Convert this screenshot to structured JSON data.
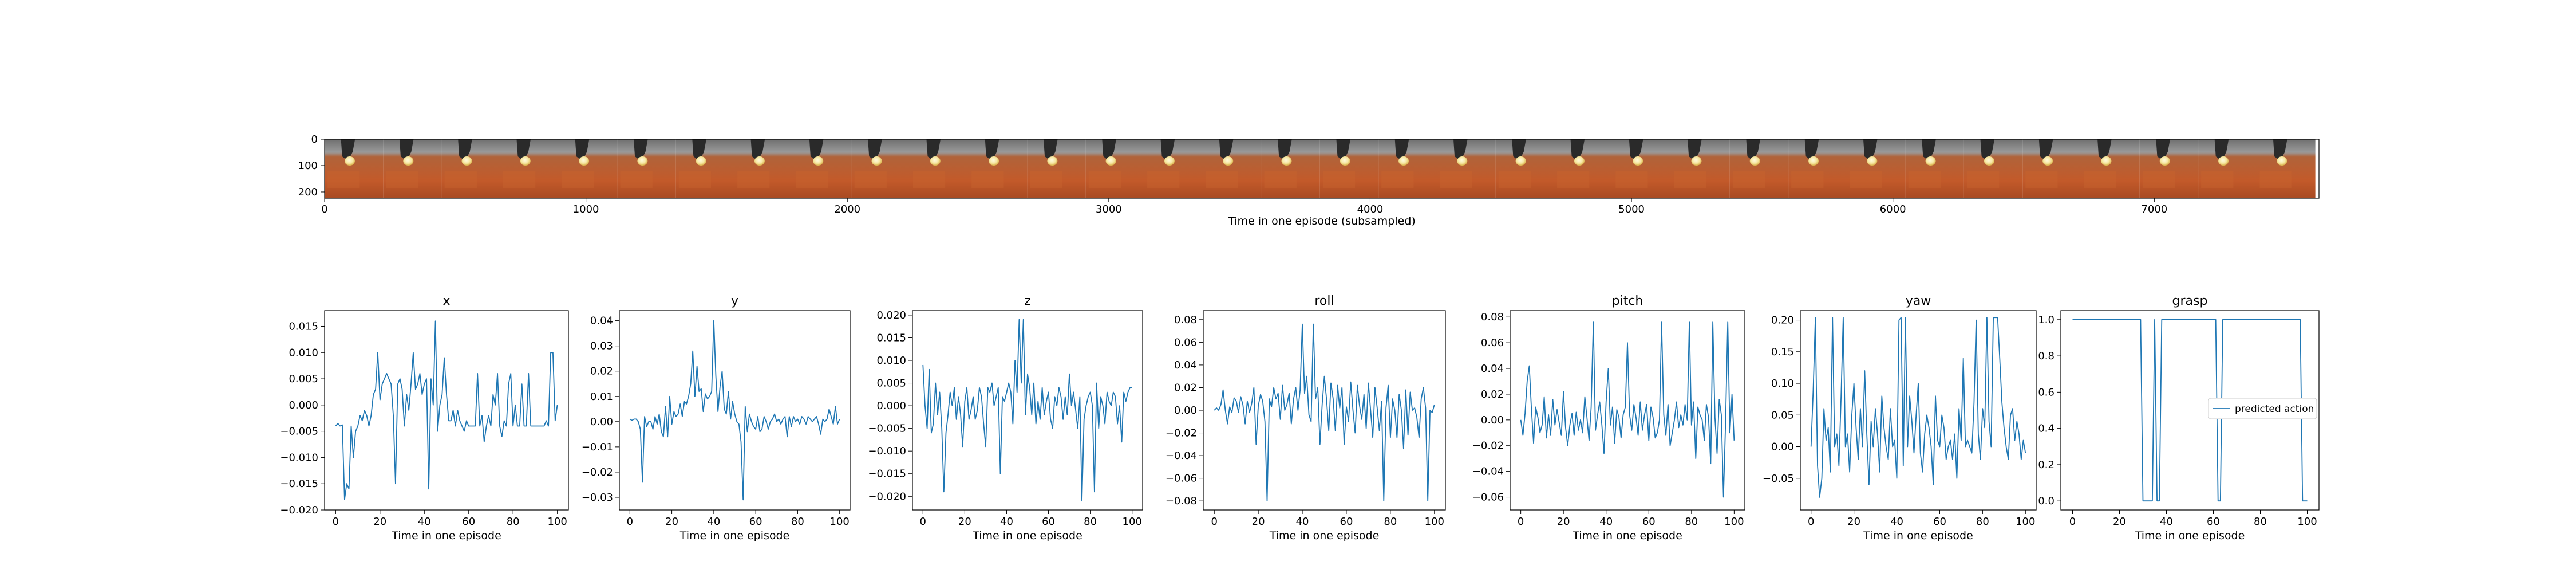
{
  "colors": {
    "series": "#1f77b4",
    "frame": "#000000",
    "legend_edge": "#cccccc"
  },
  "filmstrip": {
    "xlabel": "Time in one episode (subsampled)",
    "xticks": [
      0,
      1000,
      2000,
      3000,
      4000,
      5000,
      6000,
      7000
    ],
    "yticks": [
      0,
      100,
      200
    ],
    "xlim": [
      0,
      7630
    ],
    "ylim": [
      0,
      224
    ],
    "frame_count": 34,
    "frame_width_units": 224,
    "frame_ball_visible": [
      true,
      true,
      true,
      true,
      true,
      true,
      true,
      true,
      true,
      true,
      true,
      true,
      true,
      true,
      true,
      true,
      true,
      true,
      true,
      true,
      true,
      true,
      true,
      true,
      true,
      true,
      true,
      true,
      true,
      true,
      true,
      true,
      true,
      true
    ]
  },
  "chart_data": [
    {
      "type": "line",
      "title": "x",
      "xlabel": "Time in one episode",
      "ylabel": "",
      "xlim": [
        -5,
        105
      ],
      "ylim": [
        -0.02,
        0.018
      ],
      "xticks": [
        0,
        20,
        40,
        60,
        80,
        100
      ],
      "yticks": [
        -0.02,
        -0.015,
        -0.01,
        -0.005,
        0.0,
        0.005,
        0.01,
        0.015
      ],
      "ytick_labels": [
        "−0.020",
        "−0.015",
        "−0.010",
        "−0.005",
        "0.000",
        "0.005",
        "0.010",
        "0.015"
      ],
      "series": [
        {
          "values": [
            -0.004,
            -0.0035,
            -0.004,
            -0.0038,
            -0.018,
            -0.015,
            -0.016,
            -0.004,
            -0.01,
            -0.005,
            -0.004,
            -0.002,
            -0.003,
            -0.001,
            -0.002,
            -0.004,
            -0.002,
            0.002,
            0.003,
            0.01,
            0.001,
            0.004,
            0.005,
            0.006,
            0.005,
            0.004,
            -0.002,
            -0.015,
            0.004,
            0.005,
            0.003,
            -0.004,
            0.002,
            -0.001,
            0.004,
            0.01,
            0.003,
            0.004,
            0.006,
            0.002,
            0.004,
            0.005,
            -0.016,
            0.005,
            0.0,
            0.016,
            -0.005,
            0.0,
            0.002,
            0.009,
            0.002,
            -0.003,
            -0.003,
            -0.001,
            -0.004,
            -0.001,
            -0.003,
            -0.004,
            -0.005,
            -0.003,
            -0.004,
            -0.004,
            -0.004,
            -0.004,
            0.006,
            -0.004,
            -0.002,
            -0.007,
            -0.004,
            -0.002,
            -0.004,
            0.002,
            0.0,
            0.006,
            -0.004,
            -0.006,
            -0.003,
            -0.004,
            0.004,
            0.006,
            -0.004,
            0.0,
            -0.004,
            -0.004,
            0.004,
            -0.004,
            -0.004,
            0.006,
            -0.004,
            -0.004,
            -0.004,
            -0.004,
            -0.004,
            -0.004,
            -0.004,
            -0.003,
            -0.004,
            0.01,
            0.01,
            -0.003,
            0.0
          ]
        }
      ]
    },
    {
      "type": "line",
      "title": "y",
      "xlabel": "Time in one episode",
      "ylabel": "",
      "xlim": [
        -5,
        105
      ],
      "ylim": [
        -0.035,
        0.044
      ],
      "xticks": [
        0,
        20,
        40,
        60,
        80,
        100
      ],
      "yticks": [
        -0.03,
        -0.02,
        -0.01,
        0.0,
        0.01,
        0.02,
        0.03,
        0.04
      ],
      "ytick_labels": [
        "−0.03",
        "−0.02",
        "−0.01",
        "0.00",
        "0.01",
        "0.02",
        "0.03",
        "0.04"
      ],
      "series": [
        {
          "values": [
            0.001,
            0.0005,
            0.001,
            0.001,
            0.0,
            -0.003,
            -0.024,
            0.002,
            -0.002,
            0.0,
            0.0,
            -0.003,
            0.002,
            -0.001,
            0.003,
            -0.004,
            -0.006,
            0.006,
            -0.006,
            0.01,
            -0.001,
            0.004,
            0.002,
            0.003,
            0.007,
            0.002,
            0.008,
            0.007,
            0.01,
            0.015,
            0.028,
            0.01,
            0.022,
            0.012,
            0.013,
            0.004,
            0.011,
            0.009,
            0.01,
            0.012,
            0.04,
            0.018,
            0.004,
            0.014,
            0.02,
            0.005,
            0.003,
            0.012,
            0.001,
            0.008,
            0.003,
            0.0,
            -0.001,
            -0.008,
            -0.031,
            0.006,
            -0.004,
            0.003,
            0.0,
            -0.002,
            -0.003,
            0.002,
            -0.004,
            -0.003,
            0.002,
            0.0,
            -0.003,
            0.0,
            0.001,
            0.003,
            0.0,
            0.001,
            -0.001,
            0.001,
            0.002,
            -0.006,
            0.002,
            -0.002,
            0.002,
            0.0,
            0.001,
            -0.001,
            0.002,
            0.001,
            -0.001,
            0.002,
            0.001,
            0.0,
            0.001,
            0.002,
            -0.001,
            -0.005,
            0.001,
            0.0,
            0.001,
            0.005,
            0.002,
            -0.001,
            0.006,
            -0.001,
            0.001
          ]
        }
      ]
    },
    {
      "type": "line",
      "title": "z",
      "xlabel": "Time in one episode",
      "ylabel": "",
      "xlim": [
        -5,
        105
      ],
      "ylim": [
        -0.023,
        0.021
      ],
      "xticks": [
        0,
        20,
        40,
        60,
        80,
        100
      ],
      "yticks": [
        -0.02,
        -0.015,
        -0.01,
        -0.005,
        0.0,
        0.005,
        0.01,
        0.015,
        0.02
      ],
      "ytick_labels": [
        "−0.020",
        "−0.015",
        "−0.010",
        "−0.005",
        "0.000",
        "0.005",
        "0.010",
        "0.015",
        "0.020"
      ],
      "series": [
        {
          "values": [
            0.009,
            0.0,
            -0.005,
            0.008,
            -0.006,
            -0.004,
            0.005,
            -0.002,
            0.003,
            -0.005,
            -0.019,
            -0.006,
            -0.002,
            0.003,
            0.0,
            0.004,
            -0.003,
            0.002,
            -0.002,
            -0.009,
            0.001,
            0.004,
            -0.003,
            -0.001,
            0.002,
            -0.003,
            -0.001,
            0.004,
            0.002,
            -0.004,
            -0.009,
            0.004,
            0.003,
            0.005,
            0.0,
            0.002,
            0.004,
            -0.015,
            0.002,
            0.001,
            0.003,
            0.005,
            0.003,
            -0.004,
            0.01,
            0.003,
            0.019,
            0.005,
            0.019,
            -0.002,
            0.007,
            0.004,
            -0.002,
            0.005,
            -0.004,
            0.001,
            -0.003,
            0.004,
            -0.002,
            0.001,
            0.003,
            -0.003,
            -0.005,
            0.002,
            0.0,
            0.004,
            0.002,
            -0.003,
            0.002,
            -0.002,
            0.007,
            0.0,
            0.003,
            -0.001,
            -0.005,
            0.002,
            -0.021,
            -0.003,
            0.0,
            0.002,
            0.003,
            0.0,
            -0.019,
            0.005,
            -0.005,
            0.002,
            0.0,
            -0.004,
            0.003,
            0.001,
            0.0,
            0.003,
            0.002,
            -0.004,
            0.0,
            -0.008,
            0.003,
            0.001,
            0.003,
            0.004,
            0.004
          ]
        }
      ]
    },
    {
      "type": "line",
      "title": "roll",
      "xlabel": "Time in one episode",
      "ylabel": "",
      "xlim": [
        -5,
        105
      ],
      "ylim": [
        -0.088,
        0.088
      ],
      "xticks": [
        0,
        20,
        40,
        60,
        80,
        100
      ],
      "yticks": [
        -0.08,
        -0.06,
        -0.04,
        -0.02,
        0.0,
        0.02,
        0.04,
        0.06,
        0.08
      ],
      "ytick_labels": [
        "−0.08",
        "−0.06",
        "−0.04",
        "−0.02",
        "0.00",
        "0.02",
        "0.04",
        "0.06",
        "0.08"
      ],
      "series": [
        {
          "values": [
            0.0,
            0.002,
            0.0,
            0.005,
            0.018,
            0.0,
            -0.012,
            0.003,
            -0.002,
            0.011,
            0.008,
            -0.002,
            0.012,
            0.005,
            -0.012,
            0.008,
            -0.002,
            0.006,
            0.02,
            -0.03,
            0.004,
            0.014,
            0.008,
            -0.01,
            -0.08,
            0.01,
            0.003,
            0.02,
            0.01,
            0.015,
            -0.008,
            0.022,
            0.0,
            0.005,
            0.015,
            -0.012,
            0.01,
            0.02,
            0.0,
            0.018,
            0.076,
            0.015,
            0.03,
            -0.004,
            -0.01,
            0.076,
            0.01,
            0.02,
            -0.03,
            0.005,
            0.03,
            0.01,
            -0.018,
            0.024,
            0.01,
            -0.018,
            0.022,
            0.002,
            0.02,
            -0.03,
            0.003,
            -0.01,
            0.025,
            0.0,
            -0.02,
            0.022,
            0.004,
            -0.008,
            0.014,
            -0.016,
            0.024,
            0.0,
            -0.024,
            0.02,
            0.002,
            -0.018,
            0.008,
            -0.08,
            0.002,
            0.022,
            -0.024,
            0.01,
            0.0,
            -0.024,
            0.014,
            0.0,
            -0.034,
            0.018,
            -0.022,
            0.016,
            0.0,
            0.002,
            -0.006,
            -0.024,
            0.01,
            0.02,
            0.002,
            -0.08,
            0.0,
            -0.002,
            0.005
          ]
        }
      ]
    },
    {
      "type": "line",
      "title": "pitch",
      "xlabel": "Time in one episode",
      "ylabel": "",
      "xlim": [
        -5,
        105
      ],
      "ylim": [
        -0.07,
        0.085
      ],
      "xticks": [
        0,
        20,
        40,
        60,
        80,
        100
      ],
      "yticks": [
        -0.06,
        -0.04,
        -0.02,
        0.0,
        0.02,
        0.04,
        0.06,
        0.08
      ],
      "ytick_labels": [
        "−0.06",
        "−0.04",
        "−0.02",
        "0.00",
        "0.02",
        "0.04",
        "0.06",
        "0.08"
      ],
      "series": [
        {
          "values": [
            0.0,
            -0.012,
            0.005,
            0.03,
            0.042,
            0.008,
            -0.018,
            0.01,
            0.002,
            -0.01,
            -0.004,
            0.018,
            -0.014,
            0.004,
            -0.012,
            0.016,
            -0.004,
            0.008,
            -0.002,
            -0.012,
            0.022,
            -0.006,
            -0.02,
            -0.004,
            0.005,
            -0.012,
            0.006,
            -0.008,
            0.0,
            -0.01,
            0.018,
            0.002,
            -0.016,
            0.01,
            0.076,
            -0.008,
            0.004,
            0.014,
            -0.004,
            -0.026,
            0.014,
            0.04,
            -0.004,
            0.01,
            -0.018,
            0.008,
            0.002,
            -0.014,
            0.004,
            0.01,
            0.06,
            0.004,
            -0.008,
            0.012,
            0.002,
            -0.012,
            0.014,
            -0.008,
            0.004,
            0.012,
            -0.016,
            0.01,
            0.002,
            -0.014,
            -0.01,
            0.0,
            0.076,
            0.004,
            -0.012,
            0.012,
            -0.02,
            -0.01,
            0.0,
            0.014,
            -0.006,
            0.004,
            -0.004,
            0.012,
            0.0,
            0.076,
            -0.004,
            0.014,
            -0.03,
            0.01,
            0.004,
            0.0,
            -0.016,
            0.012,
            0.002,
            -0.034,
            0.076,
            0.002,
            -0.026,
            0.016,
            0.004,
            -0.06,
            0.0,
            0.076,
            -0.01,
            0.02,
            -0.016
          ]
        }
      ]
    },
    {
      "type": "line",
      "title": "yaw",
      "xlabel": "Time in one episode",
      "ylabel": "",
      "xlim": [
        -5,
        105
      ],
      "ylim": [
        -0.1,
        0.215
      ],
      "xticks": [
        0,
        20,
        40,
        60,
        80,
        100
      ],
      "yticks": [
        -0.05,
        0.0,
        0.05,
        0.1,
        0.15,
        0.2
      ],
      "ytick_labels": [
        "−0.05",
        "0.00",
        "0.05",
        "0.10",
        "0.15",
        "0.20"
      ],
      "series": [
        {
          "values": [
            0.0,
            0.09,
            0.204,
            -0.03,
            -0.08,
            -0.05,
            0.06,
            0.01,
            0.03,
            -0.04,
            0.204,
            0.0,
            0.02,
            -0.03,
            0.08,
            0.204,
            0.0,
            0.02,
            -0.04,
            0.05,
            0.1,
            0.03,
            -0.02,
            0.06,
            0.0,
            0.12,
            0.02,
            -0.06,
            0.04,
            0.0,
            0.06,
            0.02,
            -0.04,
            0.08,
            0.03,
            0.0,
            -0.02,
            0.06,
            0.0,
            0.01,
            -0.05,
            0.2,
            0.204,
            -0.03,
            0.204,
            0.0,
            0.08,
            0.04,
            -0.01,
            0.05,
            0.1,
            -0.01,
            -0.04,
            0.02,
            0.05,
            0.03,
            0.0,
            -0.06,
            0.08,
            0.01,
            0.0,
            0.05,
            0.03,
            -0.02,
            0.0,
            0.01,
            -0.02,
            0.02,
            -0.05,
            0.06,
            0.01,
            0.14,
            0.0,
            0.01,
            0.0,
            -0.01,
            0.07,
            0.2,
            0.02,
            -0.02,
            0.06,
            0.03,
            0.204,
            0.04,
            0.0,
            0.204,
            0.204,
            0.204,
            0.14,
            0.07,
            0.03,
            0.0,
            -0.02,
            0.05,
            0.06,
            0.01,
            0.04,
            0.02,
            -0.02,
            0.01,
            -0.01
          ]
        }
      ]
    },
    {
      "type": "line",
      "title": "grasp",
      "xlabel": "Time in one episode",
      "ylabel": "",
      "xlim": [
        -5,
        105
      ],
      "ylim": [
        -0.05,
        1.05
      ],
      "xticks": [
        0,
        20,
        40,
        60,
        80,
        100
      ],
      "yticks": [
        0.0,
        0.2,
        0.4,
        0.6,
        0.8,
        1.0
      ],
      "ytick_labels": [
        "0.0",
        "0.2",
        "0.4",
        "0.6",
        "0.8",
        "1.0"
      ],
      "legend": {
        "label": "predicted action",
        "placement": "center-right"
      },
      "series": [
        {
          "name": "predicted action",
          "values": [
            1,
            1,
            1,
            1,
            1,
            1,
            1,
            1,
            1,
            1,
            1,
            1,
            1,
            1,
            1,
            1,
            1,
            1,
            1,
            1,
            1,
            1,
            1,
            1,
            1,
            1,
            1,
            1,
            1,
            1,
            0,
            0,
            0,
            0,
            0,
            1,
            0,
            0,
            1,
            1,
            1,
            1,
            1,
            1,
            1,
            1,
            1,
            1,
            1,
            1,
            1,
            1,
            1,
            1,
            1,
            1,
            1,
            1,
            1,
            1,
            1,
            1,
            0,
            0,
            1,
            1,
            1,
            1,
            1,
            1,
            1,
            1,
            1,
            1,
            1,
            1,
            1,
            1,
            1,
            1,
            1,
            1,
            1,
            1,
            1,
            1,
            1,
            1,
            1,
            1,
            1,
            1,
            1,
            1,
            1,
            1,
            1,
            1,
            0,
            0,
            0
          ]
        }
      ]
    }
  ]
}
